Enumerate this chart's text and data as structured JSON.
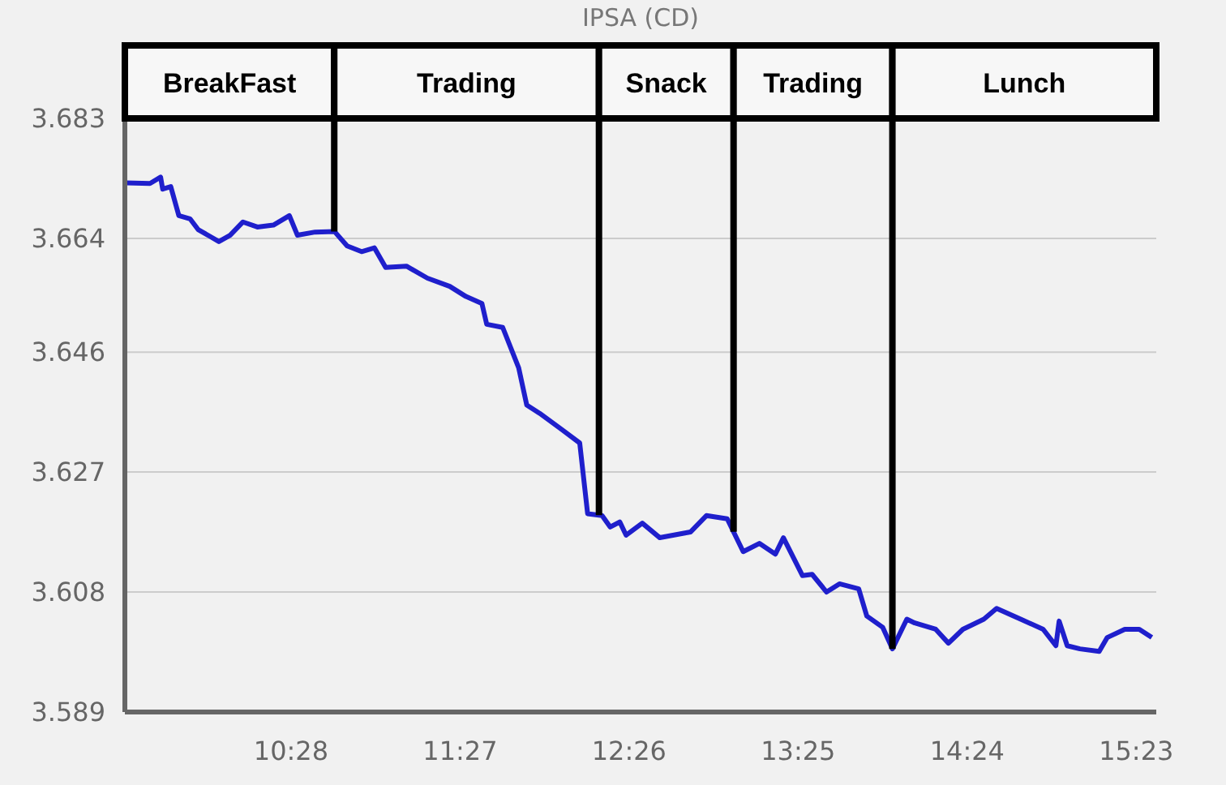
{
  "chart_data": {
    "type": "line",
    "title": "IPSA (CD)",
    "xlim": [
      9.5,
      15.5
    ],
    "xticks": [
      {
        "value": 10.4667,
        "label": "10:28"
      },
      {
        "value": 11.45,
        "label": "11:27"
      },
      {
        "value": 12.4333,
        "label": "12:26"
      },
      {
        "value": 13.4167,
        "label": "13:25"
      },
      {
        "value": 14.4,
        "label": "14:24"
      },
      {
        "value": 15.3833,
        "label": "15:23"
      }
    ],
    "ylim": [
      3.589,
      3.683
    ],
    "yticks": [
      3.589,
      3.608,
      3.627,
      3.646,
      3.664,
      3.683
    ],
    "grid": "y",
    "legend": false,
    "marker": "none",
    "line_style": "solid",
    "ref_lines": [
      {
        "axis": "x",
        "value": 10.718,
        "color": "#000000"
      },
      {
        "axis": "x",
        "value": 12.258,
        "color": "#000000"
      },
      {
        "axis": "x",
        "value": 13.041,
        "color": "#000000"
      },
      {
        "axis": "x",
        "value": 13.965,
        "color": "#000000"
      }
    ],
    "annotations": [
      "BreakFast",
      "Trading",
      "Snack",
      "Trading",
      "Lunch"
    ],
    "series": [
      {
        "color": "#1f1fcc",
        "x": [
          9.506,
          9.646,
          9.708,
          9.72,
          9.767,
          9.814,
          9.879,
          9.926,
          10.047,
          10.112,
          10.187,
          10.271,
          10.364,
          10.457,
          10.504,
          10.607,
          10.719,
          10.793,
          10.877,
          10.952,
          11.017,
          11.138,
          11.26,
          11.39,
          11.484,
          11.577,
          11.605,
          11.698,
          11.791,
          11.838,
          11.913,
          12.043,
          12.146,
          12.192,
          12.276,
          12.323,
          12.379,
          12.416,
          12.51,
          12.612,
          12.79,
          12.883,
          13.004,
          13.097,
          13.191,
          13.284,
          13.331,
          13.442,
          13.498,
          13.582,
          13.657,
          13.769,
          13.816,
          13.909,
          13.965,
          14.049,
          14.095,
          14.217,
          14.291,
          14.375,
          14.497,
          14.571,
          14.711,
          14.842,
          14.916,
          14.935,
          14.982,
          15.056,
          15.168,
          15.215,
          15.317,
          15.401,
          15.474
        ],
        "values": [
          3.6728,
          3.6727,
          3.6737,
          3.6718,
          3.6722,
          3.6676,
          3.6671,
          3.6654,
          3.6635,
          3.6645,
          3.6666,
          3.6658,
          3.6661,
          3.6676,
          3.6645,
          3.665,
          3.6651,
          3.6628,
          3.6619,
          3.6625,
          3.6594,
          3.6596,
          3.6577,
          3.6564,
          3.6548,
          3.6537,
          3.6504,
          3.6499,
          3.6435,
          3.6376,
          3.6363,
          3.6337,
          3.6316,
          3.6204,
          3.6201,
          3.6183,
          3.6191,
          3.617,
          3.6189,
          3.6166,
          3.6175,
          3.6201,
          3.6196,
          3.6144,
          3.6157,
          3.614,
          3.6166,
          3.6106,
          3.6108,
          3.608,
          3.6093,
          3.6085,
          3.6042,
          3.6024,
          3.599,
          3.6037,
          3.6031,
          3.6021,
          3.5999,
          3.6021,
          3.6037,
          3.6054,
          3.6037,
          3.6021,
          3.5995,
          3.6034,
          3.5995,
          3.599,
          3.5986,
          3.6008,
          3.6021,
          3.6021,
          3.6008
        ]
      }
    ]
  }
}
